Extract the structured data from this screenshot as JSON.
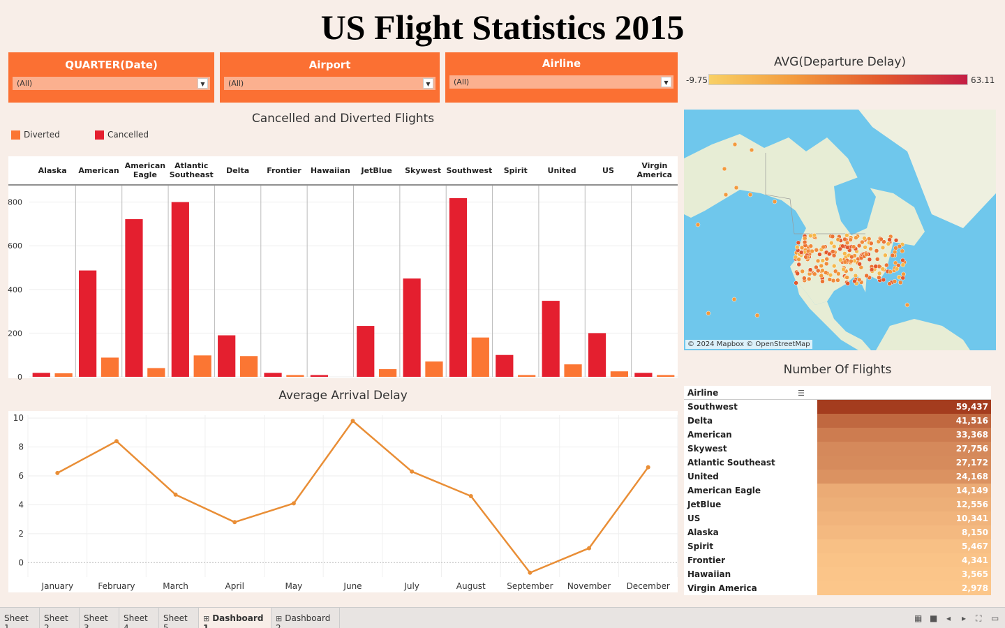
{
  "title": "US Flight Statistics 2015",
  "filters": [
    {
      "label": "QUARTER(Date)",
      "value": "(All)"
    },
    {
      "label": "Airport",
      "value": "(All)"
    },
    {
      "label": "Airline",
      "value": "(All)"
    }
  ],
  "colors": {
    "background": "#f8eee8",
    "filter": "#fb7033",
    "cancelled": "#e41f2f",
    "diverted": "#fb7633",
    "line": "#e98e36",
    "map_water": "#6fc7ec"
  },
  "map": {
    "legend_title": "AVG(Departure Delay)",
    "scale_min": "-9.75",
    "scale_max": "63.11",
    "credit": "© 2024 Mapbox © OpenStreetMap"
  },
  "bar_chart_title": "Cancelled and Diverted Flights",
  "line_chart_title": "Average Arrival Delay",
  "table": {
    "title": "Number Of Flights",
    "column_header": "Airline",
    "sort_icon": "sort-icon"
  },
  "chart_data": [
    {
      "type": "bar",
      "title": "Cancelled and Diverted Flights",
      "categories": [
        "Alaska",
        "American",
        "American Eagle",
        "Atlantic Southeast",
        "Delta",
        "Frontier",
        "Hawaiian",
        "JetBlue",
        "Skywest",
        "Southwest",
        "Spirit",
        "United",
        "US",
        "Virgin America"
      ],
      "series": [
        {
          "name": "Cancelled",
          "values": [
            18,
            487,
            722,
            800,
            190,
            18,
            8,
            233,
            450,
            818,
            100,
            348,
            200,
            18
          ]
        },
        {
          "name": "Diverted",
          "values": [
            16,
            88,
            40,
            98,
            95,
            8,
            0,
            35,
            70,
            180,
            8,
            57,
            25,
            8
          ]
        }
      ],
      "legend": [
        "Diverted",
        "Cancelled"
      ],
      "yticks": [
        0,
        200,
        400,
        600,
        800
      ],
      "ylim": [
        0,
        850
      ],
      "grid": true,
      "legend_position": "top-left"
    },
    {
      "type": "line",
      "title": "Average Arrival Delay",
      "categories": [
        "January",
        "February",
        "March",
        "April",
        "May",
        "June",
        "July",
        "August",
        "September",
        "November",
        "December"
      ],
      "values": [
        6.2,
        8.4,
        4.7,
        2.8,
        4.1,
        9.8,
        6.3,
        4.6,
        -0.7,
        1.0,
        6.6
      ],
      "yticks": [
        0,
        2,
        4,
        6,
        8,
        10
      ],
      "ylim": [
        -1,
        10.2
      ],
      "grid": true
    },
    {
      "type": "table",
      "title": "Number Of Flights",
      "rows": [
        {
          "airline": "Southwest",
          "flights": "59,437",
          "value": 59437
        },
        {
          "airline": "Delta",
          "flights": "41,516",
          "value": 41516
        },
        {
          "airline": "American",
          "flights": "33,368",
          "value": 33368
        },
        {
          "airline": "Skywest",
          "flights": "27,756",
          "value": 27756
        },
        {
          "airline": "Atlantic Southeast",
          "flights": "27,172",
          "value": 27172
        },
        {
          "airline": "United",
          "flights": "24,168",
          "value": 24168
        },
        {
          "airline": "American Eagle",
          "flights": "14,149",
          "value": 14149
        },
        {
          "airline": "JetBlue",
          "flights": "12,556",
          "value": 12556
        },
        {
          "airline": "US",
          "flights": "10,341",
          "value": 10341
        },
        {
          "airline": "Alaska",
          "flights": "8,150",
          "value": 8150
        },
        {
          "airline": "Spirit",
          "flights": "5,467",
          "value": 5467
        },
        {
          "airline": "Frontier",
          "flights": "4,341",
          "value": 4341
        },
        {
          "airline": "Hawaiian",
          "flights": "3,565",
          "value": 3565
        },
        {
          "airline": "Virgin America",
          "flights": "2,978",
          "value": 2978
        }
      ]
    }
  ],
  "tabs": [
    {
      "label": "Sheet 1",
      "icon": ""
    },
    {
      "label": "Sheet 2",
      "icon": ""
    },
    {
      "label": "Sheet 3",
      "icon": ""
    },
    {
      "label": "Sheet 4",
      "icon": ""
    },
    {
      "label": "Sheet 5",
      "icon": ""
    },
    {
      "label": "Dashboard 1",
      "icon": "⊞",
      "active": true
    },
    {
      "label": "Dashboard 2",
      "icon": "⊞"
    }
  ]
}
